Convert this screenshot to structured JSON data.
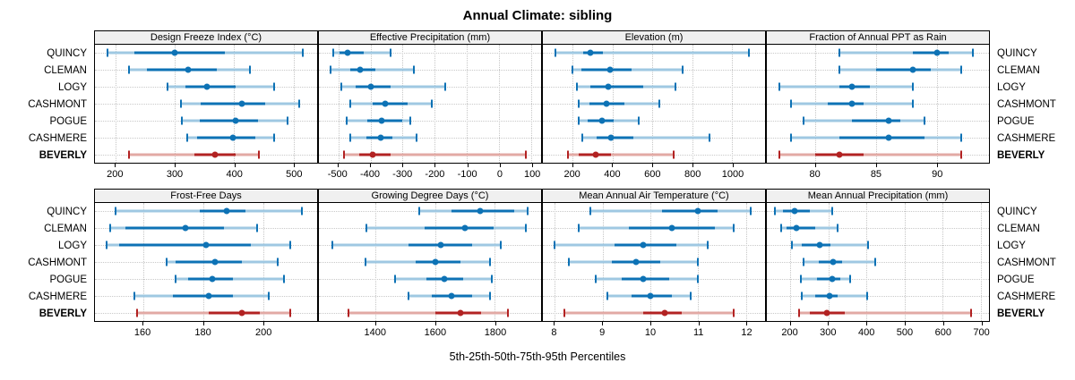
{
  "title": "Annual Climate: sibling",
  "caption": "5th-25th-50th-75th-95th Percentiles",
  "sites": [
    "QUINCY",
    "CLEMAN",
    "LOGY",
    "CASHMONT",
    "POGUE",
    "CASHMERE",
    "BEVERLY"
  ],
  "highlight_site": "BEVERLY",
  "percentile_labels": [
    "5th",
    "25th",
    "50th",
    "75th",
    "95th"
  ],
  "colors": {
    "blue": "#0d72b5",
    "blue_light": "#9fc8e2",
    "red": "#b22222",
    "red_light": "#e2a9a4",
    "grid": "#c9c9c9",
    "strip_bg": "#f0f0f0",
    "border": "#000000"
  },
  "chart_data": [
    {
      "type": "scatter",
      "style": "percentile-whisker",
      "title": "Design Freeze Index (°C)",
      "xlim": [
        165,
        540
      ],
      "ticks": [
        200,
        300,
        400,
        500
      ],
      "series": [
        {
          "name": "QUINCY",
          "values": [
            186,
            232,
            300,
            385,
            516
          ]
        },
        {
          "name": "CLEMAN",
          "values": [
            222,
            253,
            322,
            370,
            426
          ]
        },
        {
          "name": "LOGY",
          "values": [
            288,
            318,
            354,
            402,
            467
          ]
        },
        {
          "name": "CASHMONT",
          "values": [
            310,
            343,
            413,
            452,
            510
          ]
        },
        {
          "name": "POGUE",
          "values": [
            312,
            342,
            402,
            440,
            490
          ]
        },
        {
          "name": "CASHMERE",
          "values": [
            321,
            338,
            398,
            436,
            468
          ]
        },
        {
          "name": "BEVERLY",
          "values": [
            222,
            333,
            367,
            402,
            442
          ]
        }
      ]
    },
    {
      "type": "scatter",
      "style": "percentile-whisker",
      "title": "Effective Precipitation (mm)",
      "xlim": [
        -560,
        130
      ],
      "ticks": [
        -500,
        -400,
        -300,
        -200,
        -100,
        0,
        100
      ],
      "series": [
        {
          "name": "QUINCY",
          "values": [
            -515,
            -495,
            -470,
            -420,
            -337
          ]
        },
        {
          "name": "CLEMAN",
          "values": [
            -525,
            -463,
            -432,
            -386,
            -266
          ]
        },
        {
          "name": "LOGY",
          "values": [
            -490,
            -445,
            -400,
            -337,
            -168
          ]
        },
        {
          "name": "CASHMONT",
          "values": [
            -463,
            -392,
            -355,
            -285,
            -210
          ]
        },
        {
          "name": "POGUE",
          "values": [
            -475,
            -410,
            -365,
            -300,
            -277
          ]
        },
        {
          "name": "CASHMERE",
          "values": [
            -463,
            -413,
            -369,
            -332,
            -257
          ]
        },
        {
          "name": "BEVERLY",
          "values": [
            -482,
            -434,
            -392,
            -337,
            83
          ]
        }
      ]
    },
    {
      "type": "scatter",
      "style": "percentile-whisker",
      "title": "Elevation (m)",
      "xlim": [
        50,
        1165
      ],
      "ticks": [
        200,
        400,
        600,
        800,
        1000
      ],
      "series": [
        {
          "name": "QUINCY",
          "values": [
            115,
            252,
            290,
            350,
            1085
          ]
        },
        {
          "name": "CLEMAN",
          "values": [
            200,
            245,
            385,
            495,
            750
          ]
        },
        {
          "name": "LOGY",
          "values": [
            220,
            290,
            380,
            555,
            715
          ]
        },
        {
          "name": "CASHMONT",
          "values": [
            230,
            285,
            368,
            460,
            635
          ]
        },
        {
          "name": "POGUE",
          "values": [
            230,
            275,
            345,
            407,
            530
          ]
        },
        {
          "name": "CASHMERE",
          "values": [
            250,
            320,
            393,
            505,
            885
          ]
        },
        {
          "name": "BEVERLY",
          "values": [
            178,
            230,
            315,
            393,
            705
          ]
        }
      ]
    },
    {
      "type": "scatter",
      "style": "percentile-whisker",
      "title": "Fraction of Annual PPT as Rain",
      "xlim": [
        76,
        94.3
      ],
      "ticks": [
        80,
        85,
        90
      ],
      "series": [
        {
          "name": "QUINCY",
          "values": [
            82,
            88,
            90,
            91,
            93
          ]
        },
        {
          "name": "CLEMAN",
          "values": [
            82,
            85,
            88,
            89.5,
            92
          ]
        },
        {
          "name": "LOGY",
          "values": [
            77,
            82,
            83,
            84.5,
            88
          ]
        },
        {
          "name": "CASHMONT",
          "values": [
            78,
            81,
            83,
            84,
            88
          ]
        },
        {
          "name": "POGUE",
          "values": [
            79,
            83,
            86,
            87,
            89
          ]
        },
        {
          "name": "CASHMERE",
          "values": [
            78,
            82,
            86,
            89,
            92
          ]
        },
        {
          "name": "BEVERLY",
          "values": [
            77,
            80,
            82,
            84,
            92
          ]
        }
      ]
    },
    {
      "type": "scatter",
      "style": "percentile-whisker",
      "title": "Frost-Free Days",
      "xlim": [
        144,
        218
      ],
      "ticks": [
        160,
        180,
        200
      ],
      "series": [
        {
          "name": "QUINCY",
          "values": [
            151,
            179,
            188,
            194,
            213
          ]
        },
        {
          "name": "CLEMAN",
          "values": [
            149,
            154,
            174,
            187,
            198
          ]
        },
        {
          "name": "LOGY",
          "values": [
            148,
            152,
            181,
            196,
            209
          ]
        },
        {
          "name": "CASHMONT",
          "values": [
            168,
            171,
            184,
            193,
            205
          ]
        },
        {
          "name": "POGUE",
          "values": [
            171,
            175,
            183,
            190,
            207
          ]
        },
        {
          "name": "CASHMERE",
          "values": [
            157,
            170,
            182,
            190,
            202
          ]
        },
        {
          "name": "BEVERLY",
          "values": [
            158,
            182,
            193,
            199,
            209
          ]
        }
      ]
    },
    {
      "type": "scatter",
      "style": "percentile-whisker",
      "title": "Growing Degree Days (°C)",
      "xlim": [
        1210,
        1955
      ],
      "ticks": [
        1400,
        1600,
        1800
      ],
      "series": [
        {
          "name": "QUINCY",
          "values": [
            1545,
            1655,
            1750,
            1865,
            1910
          ]
        },
        {
          "name": "CLEMAN",
          "values": [
            1370,
            1565,
            1700,
            1795,
            1905
          ]
        },
        {
          "name": "LOGY",
          "values": [
            1255,
            1510,
            1620,
            1725,
            1820
          ]
        },
        {
          "name": "CASHMONT",
          "values": [
            1365,
            1535,
            1600,
            1685,
            1785
          ]
        },
        {
          "name": "POGUE",
          "values": [
            1465,
            1570,
            1630,
            1695,
            1790
          ]
        },
        {
          "name": "CASHMERE",
          "values": [
            1510,
            1590,
            1655,
            1725,
            1785
          ]
        },
        {
          "name": "BEVERLY",
          "values": [
            1310,
            1600,
            1685,
            1755,
            1845
          ]
        }
      ]
    },
    {
      "type": "scatter",
      "style": "percentile-whisker",
      "title": "Mean Annual Air Temperature (°C)",
      "xlim": [
        7.75,
        12.4
      ],
      "ticks": [
        8,
        9,
        10,
        11,
        12
      ],
      "series": [
        {
          "name": "QUINCY",
          "values": [
            8.75,
            10.25,
            11.0,
            11.4,
            12.1
          ]
        },
        {
          "name": "CLEMAN",
          "values": [
            8.5,
            9.55,
            10.45,
            11.35,
            11.75
          ]
        },
        {
          "name": "LOGY",
          "values": [
            8.0,
            9.25,
            9.85,
            10.55,
            11.2
          ]
        },
        {
          "name": "CASHMONT",
          "values": [
            8.3,
            9.2,
            9.7,
            10.2,
            11.0
          ]
        },
        {
          "name": "POGUE",
          "values": [
            8.85,
            9.4,
            9.85,
            10.4,
            11.0
          ]
        },
        {
          "name": "CASHMERE",
          "values": [
            9.1,
            9.6,
            10.0,
            10.45,
            10.85
          ]
        },
        {
          "name": "BEVERLY",
          "values": [
            8.2,
            9.85,
            10.3,
            10.65,
            11.75
          ]
        }
      ]
    },
    {
      "type": "scatter",
      "style": "percentile-whisker",
      "title": "Mean Annual Precipitation (mm)",
      "xlim": [
        138,
        722
      ],
      "ticks": [
        200,
        300,
        400,
        500,
        600,
        700
      ],
      "series": [
        {
          "name": "QUINCY",
          "values": [
            160,
            180,
            210,
            250,
            310
          ]
        },
        {
          "name": "CLEMAN",
          "values": [
            175,
            190,
            215,
            265,
            325
          ]
        },
        {
          "name": "LOGY",
          "values": [
            205,
            230,
            277,
            305,
            405
          ]
        },
        {
          "name": "CASHMONT",
          "values": [
            235,
            275,
            313,
            335,
            423
          ]
        },
        {
          "name": "POGUE",
          "values": [
            228,
            270,
            310,
            330,
            358
          ]
        },
        {
          "name": "CASHMERE",
          "values": [
            230,
            265,
            303,
            325,
            402
          ]
        },
        {
          "name": "BEVERLY",
          "values": [
            222,
            250,
            296,
            343,
            675
          ]
        }
      ]
    }
  ]
}
